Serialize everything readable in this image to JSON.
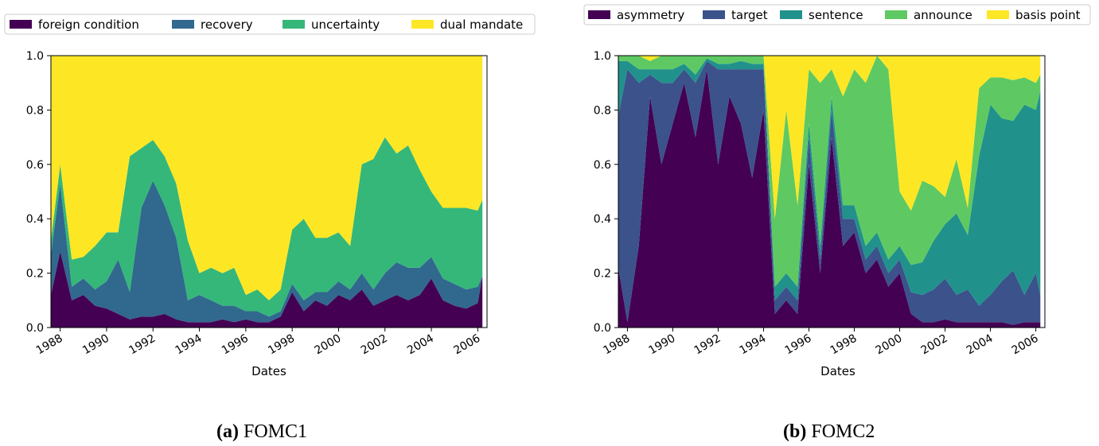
{
  "captions": [
    {
      "label": "(a)",
      "text": "FOMC1"
    },
    {
      "label": "(b)",
      "text": "FOMC2"
    }
  ],
  "chart_data": [
    {
      "type": "area",
      "stacked": true,
      "title": "",
      "xlabel": "Dates",
      "ylabel": "",
      "xlim": [
        1987.6,
        2006.4
      ],
      "ylim": [
        0,
        1.0
      ],
      "xticks": [
        "1988",
        "1990",
        "1992",
        "1994",
        "1996",
        "1998",
        "2000",
        "2002",
        "2004",
        "2006"
      ],
      "yticks": [
        "0.0",
        "0.2",
        "0.4",
        "0.6",
        "0.8",
        "1.0"
      ],
      "legend_position": "top",
      "grid": false,
      "x": [
        1987.6,
        1988.0,
        1988.5,
        1989.0,
        1989.5,
        1990.0,
        1990.5,
        1991.0,
        1991.5,
        1992.0,
        1992.5,
        1993.0,
        1993.5,
        1994.0,
        1994.5,
        1995.0,
        1995.5,
        1996.0,
        1996.5,
        1997.0,
        1997.5,
        1998.0,
        1998.5,
        1999.0,
        1999.5,
        2000.0,
        2000.5,
        2001.0,
        2001.5,
        2002.0,
        2002.5,
        2003.0,
        2003.5,
        2004.0,
        2004.5,
        2005.0,
        2005.5,
        2006.0,
        2006.2
      ],
      "series": [
        {
          "name": "foreign condition",
          "color": "#440154",
          "values": [
            0.12,
            0.28,
            0.1,
            0.12,
            0.08,
            0.07,
            0.05,
            0.03,
            0.04,
            0.04,
            0.05,
            0.03,
            0.02,
            0.02,
            0.02,
            0.03,
            0.02,
            0.03,
            0.02,
            0.02,
            0.04,
            0.13,
            0.06,
            0.1,
            0.08,
            0.12,
            0.1,
            0.14,
            0.08,
            0.1,
            0.12,
            0.1,
            0.12,
            0.18,
            0.1,
            0.08,
            0.07,
            0.09,
            0.19
          ]
        },
        {
          "name": "recovery",
          "color": "#31688e",
          "values": [
            0.15,
            0.25,
            0.05,
            0.06,
            0.06,
            0.1,
            0.2,
            0.1,
            0.4,
            0.5,
            0.4,
            0.3,
            0.08,
            0.1,
            0.08,
            0.05,
            0.06,
            0.03,
            0.04,
            0.02,
            0.02,
            0.03,
            0.04,
            0.03,
            0.05,
            0.05,
            0.04,
            0.06,
            0.06,
            0.1,
            0.12,
            0.12,
            0.1,
            0.08,
            0.08,
            0.08,
            0.07,
            0.06,
            0.0
          ]
        },
        {
          "name": "uncertainty",
          "color": "#35b779",
          "values": [
            0.05,
            0.07,
            0.1,
            0.08,
            0.16,
            0.18,
            0.1,
            0.5,
            0.22,
            0.15,
            0.18,
            0.2,
            0.22,
            0.08,
            0.12,
            0.12,
            0.14,
            0.06,
            0.08,
            0.06,
            0.08,
            0.2,
            0.3,
            0.2,
            0.2,
            0.18,
            0.16,
            0.4,
            0.48,
            0.5,
            0.4,
            0.45,
            0.36,
            0.24,
            0.26,
            0.28,
            0.3,
            0.28,
            0.28
          ]
        },
        {
          "name": "dual mandate",
          "color": "#fde725",
          "values": [
            0.68,
            0.4,
            0.75,
            0.74,
            0.7,
            0.65,
            0.65,
            0.37,
            0.34,
            0.31,
            0.37,
            0.47,
            0.68,
            0.8,
            0.78,
            0.8,
            0.78,
            0.88,
            0.86,
            0.9,
            0.86,
            0.64,
            0.6,
            0.67,
            0.67,
            0.65,
            0.7,
            0.4,
            0.38,
            0.3,
            0.36,
            0.33,
            0.42,
            0.5,
            0.56,
            0.56,
            0.56,
            0.57,
            0.53
          ]
        }
      ]
    },
    {
      "type": "area",
      "stacked": true,
      "title": "",
      "xlabel": "Dates",
      "ylabel": "",
      "xlim": [
        1987.6,
        2006.4
      ],
      "ylim": [
        0,
        1.0
      ],
      "xticks": [
        "1988",
        "1990",
        "1992",
        "1994",
        "1996",
        "1998",
        "2000",
        "2002",
        "2004",
        "2006"
      ],
      "yticks": [
        "0.0",
        "0.2",
        "0.4",
        "0.6",
        "0.8",
        "1.0"
      ],
      "legend_position": "top",
      "grid": false,
      "x": [
        1987.6,
        1988.0,
        1988.5,
        1989.0,
        1989.5,
        1990.0,
        1990.5,
        1991.0,
        1991.5,
        1992.0,
        1992.5,
        1993.0,
        1993.5,
        1994.0,
        1994.5,
        1995.0,
        1995.5,
        1996.0,
        1996.5,
        1997.0,
        1997.5,
        1998.0,
        1998.5,
        1999.0,
        1999.5,
        2000.0,
        2000.5,
        2001.0,
        2001.5,
        2002.0,
        2002.5,
        2003.0,
        2003.5,
        2004.0,
        2004.5,
        2005.0,
        2005.5,
        2006.0,
        2006.2
      ],
      "series": [
        {
          "name": "asymmetry",
          "color": "#440154",
          "values": [
            0.22,
            0.02,
            0.3,
            0.85,
            0.6,
            0.75,
            0.9,
            0.7,
            0.95,
            0.6,
            0.85,
            0.75,
            0.55,
            0.8,
            0.05,
            0.1,
            0.05,
            0.6,
            0.2,
            0.7,
            0.3,
            0.35,
            0.2,
            0.25,
            0.15,
            0.2,
            0.05,
            0.02,
            0.02,
            0.03,
            0.02,
            0.02,
            0.02,
            0.02,
            0.02,
            0.01,
            0.02,
            0.02,
            0.02
          ]
        },
        {
          "name": "target",
          "color": "#3b528b",
          "values": [
            0.56,
            0.93,
            0.6,
            0.08,
            0.3,
            0.15,
            0.05,
            0.2,
            0.03,
            0.35,
            0.1,
            0.2,
            0.4,
            0.15,
            0.05,
            0.05,
            0.05,
            0.1,
            0.05,
            0.1,
            0.1,
            0.05,
            0.05,
            0.05,
            0.05,
            0.05,
            0.08,
            0.1,
            0.12,
            0.15,
            0.1,
            0.12,
            0.06,
            0.1,
            0.15,
            0.2,
            0.1,
            0.18,
            0.1
          ]
        },
        {
          "name": "sentence",
          "color": "#21918c",
          "values": [
            0.2,
            0.03,
            0.05,
            0.02,
            0.05,
            0.05,
            0.02,
            0.03,
            0.01,
            0.02,
            0.02,
            0.03,
            0.02,
            0.02,
            0.05,
            0.05,
            0.05,
            0.05,
            0.05,
            0.05,
            0.05,
            0.05,
            0.05,
            0.05,
            0.05,
            0.05,
            0.1,
            0.12,
            0.18,
            0.2,
            0.3,
            0.2,
            0.55,
            0.7,
            0.6,
            0.55,
            0.7,
            0.6,
            0.75
          ]
        },
        {
          "name": "announce",
          "color": "#5ec962",
          "values": [
            0.02,
            0.02,
            0.05,
            0.03,
            0.05,
            0.05,
            0.03,
            0.07,
            0.01,
            0.03,
            0.03,
            0.02,
            0.03,
            0.03,
            0.25,
            0.6,
            0.3,
            0.2,
            0.6,
            0.1,
            0.4,
            0.5,
            0.6,
            0.65,
            0.7,
            0.2,
            0.2,
            0.3,
            0.2,
            0.1,
            0.2,
            0.1,
            0.25,
            0.1,
            0.15,
            0.15,
            0.1,
            0.1,
            0.06
          ]
        },
        {
          "name": "basis point",
          "color": "#fde725",
          "values": [
            0.0,
            0.0,
            0.0,
            0.02,
            0.0,
            0.0,
            0.0,
            0.0,
            0.0,
            0.0,
            0.0,
            0.0,
            0.0,
            0.0,
            0.6,
            0.2,
            0.55,
            0.05,
            0.1,
            0.05,
            0.15,
            0.05,
            0.1,
            0.0,
            0.05,
            0.5,
            0.57,
            0.46,
            0.48,
            0.52,
            0.38,
            0.56,
            0.12,
            0.08,
            0.08,
            0.09,
            0.08,
            0.1,
            0.07
          ]
        }
      ]
    }
  ]
}
